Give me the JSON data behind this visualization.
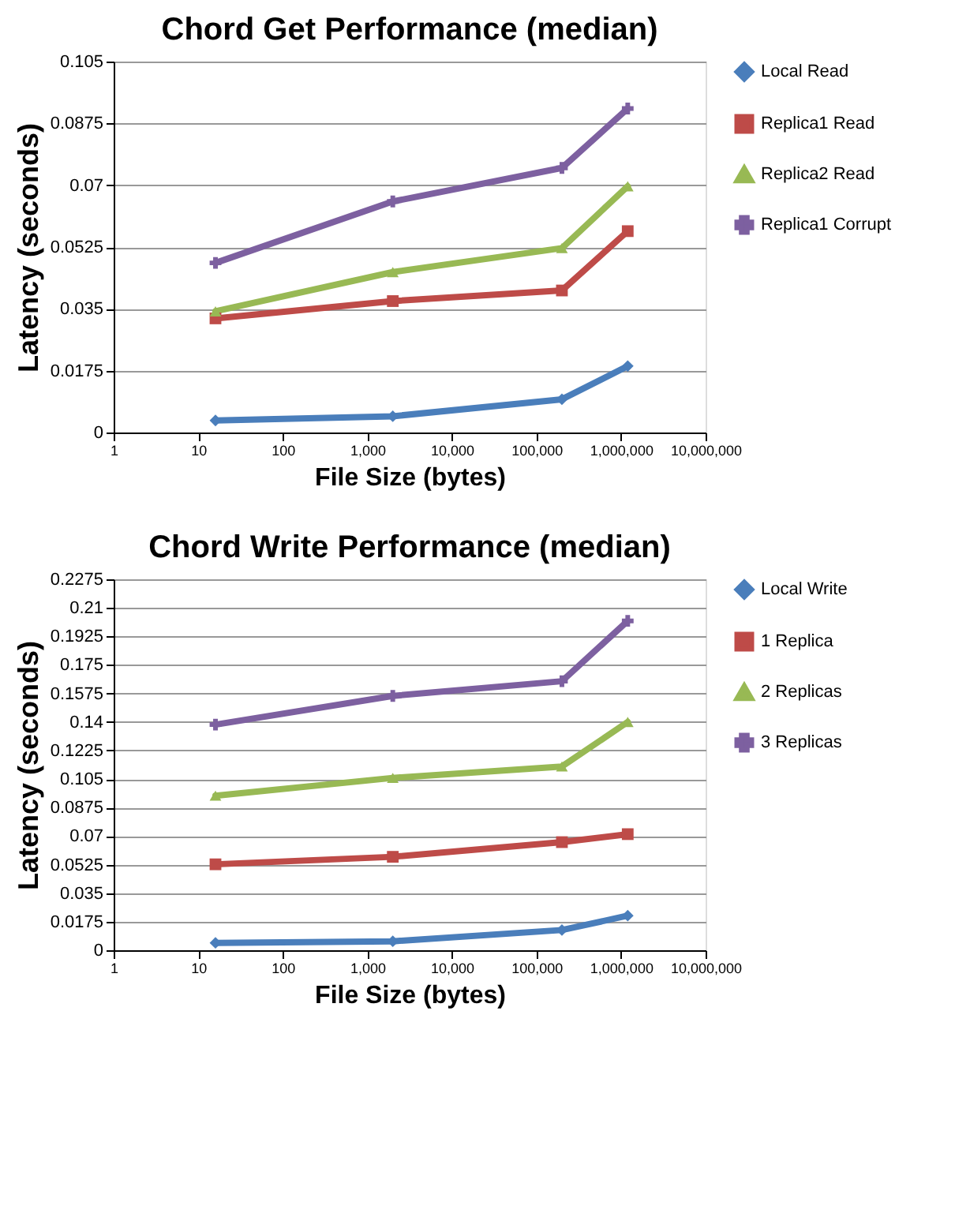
{
  "chart_data": [
    {
      "type": "line",
      "title": "Chord Get Performance (median)",
      "xlabel": "File Size (bytes)",
      "ylabel": "Latency (seconds)",
      "x": [
        16,
        2000,
        200000,
        1200000
      ],
      "log": "x",
      "grid": "y",
      "legend": "right",
      "line_style": "solid",
      "xlim": [
        1,
        10000000
      ],
      "xticks": [
        1,
        10,
        100,
        {
          "value": 1000,
          "label": "1,000"
        },
        {
          "value": 10000,
          "label": "10,000"
        },
        {
          "value": 100000,
          "label": "100,000"
        },
        {
          "value": 1000000,
          "label": "1,000,000"
        },
        {
          "value": 10000000,
          "label": "10,000,000"
        }
      ],
      "ylim": [
        0,
        0.105
      ],
      "yticks": [
        0,
        0.0175,
        0.035,
        0.0525,
        0.07,
        0.0875,
        0.105
      ],
      "series": [
        {
          "name": "Local Read",
          "color": "#4a7ebb",
          "marker": "diamond",
          "values": [
            0.0034,
            0.0046,
            0.0094,
            0.0188
          ]
        },
        {
          "name": "Replica1 Read",
          "color": "#be4b48",
          "marker": "square",
          "values": [
            0.0323,
            0.0372,
            0.0402,
            0.057
          ]
        },
        {
          "name": "Replica2 Read",
          "color": "#98b954",
          "marker": "triangle",
          "values": [
            0.0343,
            0.0454,
            0.0522,
            0.0697
          ]
        },
        {
          "name": "Replica1 Corrupt",
          "color": "#7d60a0",
          "marker": "cross",
          "values": [
            0.048,
            0.0654,
            0.0749,
            0.0917
          ]
        }
      ]
    },
    {
      "type": "line",
      "title": "Chord Write Performance (median)",
      "xlabel": "File Size (bytes)",
      "ylabel": "Latency (seconds)",
      "x": [
        16,
        2000,
        200000,
        1200000
      ],
      "log": "x",
      "grid": "y",
      "legend": "right",
      "line_style": "solid",
      "xlim": [
        1,
        10000000
      ],
      "xticks": [
        1,
        10,
        100,
        {
          "value": 1000,
          "label": "1,000"
        },
        {
          "value": 10000,
          "label": "10,000"
        },
        {
          "value": 100000,
          "label": "100,000"
        },
        {
          "value": 1000000,
          "label": "1,000,000"
        },
        {
          "value": 10000000,
          "label": "10,000,000"
        }
      ],
      "ylim": [
        0,
        0.2275
      ],
      "yticks": [
        0,
        0.0175,
        0.035,
        0.0525,
        0.07,
        0.0875,
        0.105,
        0.1225,
        0.14,
        0.1575,
        0.175,
        0.1925,
        0.21,
        0.2275
      ],
      "series": [
        {
          "name": "Local Write",
          "color": "#4a7ebb",
          "marker": "diamond",
          "values": [
            0.0045,
            0.0055,
            0.0124,
            0.0212
          ]
        },
        {
          "name": "1 Replica",
          "color": "#be4b48",
          "marker": "square",
          "values": [
            0.0527,
            0.0573,
            0.0663,
            0.0712
          ]
        },
        {
          "name": "2 Replicas",
          "color": "#98b954",
          "marker": "triangle",
          "values": [
            0.0948,
            0.1057,
            0.1127,
            0.14
          ]
        },
        {
          "name": "3 Replicas",
          "color": "#7d60a0",
          "marker": "cross",
          "values": [
            0.1384,
            0.156,
            0.165,
            0.202
          ]
        }
      ]
    }
  ]
}
